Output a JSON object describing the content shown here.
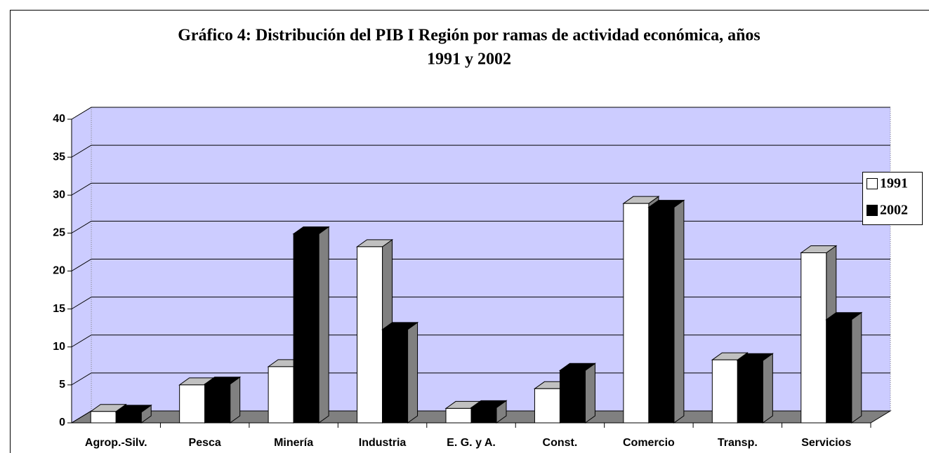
{
  "chart_data": {
    "type": "bar3d",
    "title": [
      "Gráfico 4: Distribución del PIB I Región por ramas de actividad económica, años",
      "1991 y 2002"
    ],
    "categories": [
      "Agrop.-Silv.",
      "Pesca",
      "Minería",
      "Industria",
      "E. G. y A.",
      "Const.",
      "Comercio",
      "Transp.",
      "Servicios"
    ],
    "series": [
      {
        "name": "1991",
        "color": "#ffffff",
        "values": [
          1.5,
          5.0,
          7.4,
          23.2,
          1.9,
          4.5,
          28.9,
          8.3,
          22.4
        ]
      },
      {
        "name": "2002",
        "color": "#000000",
        "values": [
          1.4,
          5.1,
          24.9,
          12.3,
          2.0,
          6.9,
          28.4,
          8.2,
          13.6
        ]
      }
    ],
    "ylim": [
      0,
      40
    ],
    "yticks": [
      0,
      5,
      10,
      15,
      20,
      25,
      30,
      35,
      40
    ],
    "grid": true,
    "wall_color": "#ccccff",
    "floor_color": "#808080",
    "legend": "right"
  }
}
